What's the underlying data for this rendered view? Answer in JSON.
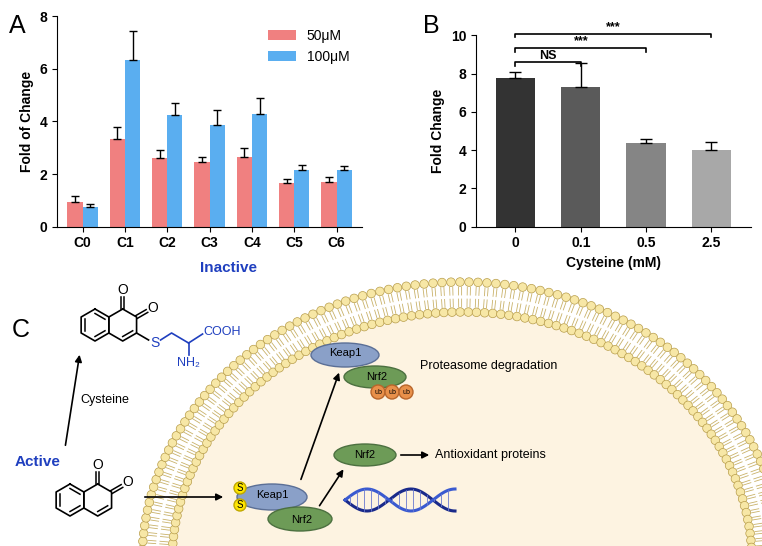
{
  "chart_data": [
    {
      "type": "bar",
      "title": "A",
      "categories": [
        "C0",
        "C1",
        "C2",
        "C3",
        "C4",
        "C5",
        "C6"
      ],
      "series": [
        {
          "name": "50μM",
          "color": "#f08080",
          "values": [
            0.95,
            3.35,
            2.6,
            2.45,
            2.65,
            1.65,
            1.7
          ],
          "errors": [
            0.2,
            0.45,
            0.3,
            0.2,
            0.35,
            0.15,
            0.2
          ]
        },
        {
          "name": "100μM",
          "color": "#5aaef0",
          "values": [
            0.75,
            6.35,
            4.25,
            3.85,
            4.3,
            2.15,
            2.15
          ],
          "errors": [
            0.1,
            1.1,
            0.45,
            0.6,
            0.6,
            0.2,
            0.15
          ]
        }
      ],
      "y_label": "Fold of Change",
      "ylim": [
        0,
        8
      ],
      "yticks": [
        0,
        2,
        4,
        6,
        8
      ],
      "legend": "upper right"
    },
    {
      "type": "bar",
      "title": "B",
      "categories": [
        "0",
        "0.1",
        "0.5",
        "2.5"
      ],
      "values": [
        7.75,
        7.3,
        4.4,
        4.0
      ],
      "errors": [
        0.35,
        1.25,
        0.2,
        0.45
      ],
      "colors": [
        "#333333",
        "#5a5a5a",
        "#858585",
        "#a8a8a8"
      ],
      "x_label": "Cysteine (mM)",
      "y_label": "Fold Change",
      "ylim": [
        0,
        10
      ],
      "yticks": [
        0,
        2,
        4,
        6,
        8,
        10
      ],
      "annotations": [
        {
          "from": "0",
          "to": "0.1",
          "label": "NS"
        },
        {
          "from": "0",
          "to": "0.5",
          "label": "***"
        },
        {
          "from": "0",
          "to": "2.5",
          "label": "***"
        }
      ]
    }
  ],
  "diagram": {
    "title": "C",
    "labels": {
      "active": "Active",
      "inactive": "Inactive",
      "reagent": "Cysteine",
      "keap1": "Keap1",
      "nrf2": "Nrf2",
      "degradation": "Proteasome degradation",
      "product": "Antioxidant proteins",
      "sulfur": "S",
      "carboxyl": "COOH",
      "amine": "NH₂",
      "oxygen": "O",
      "ubiquitin": "ub"
    }
  }
}
